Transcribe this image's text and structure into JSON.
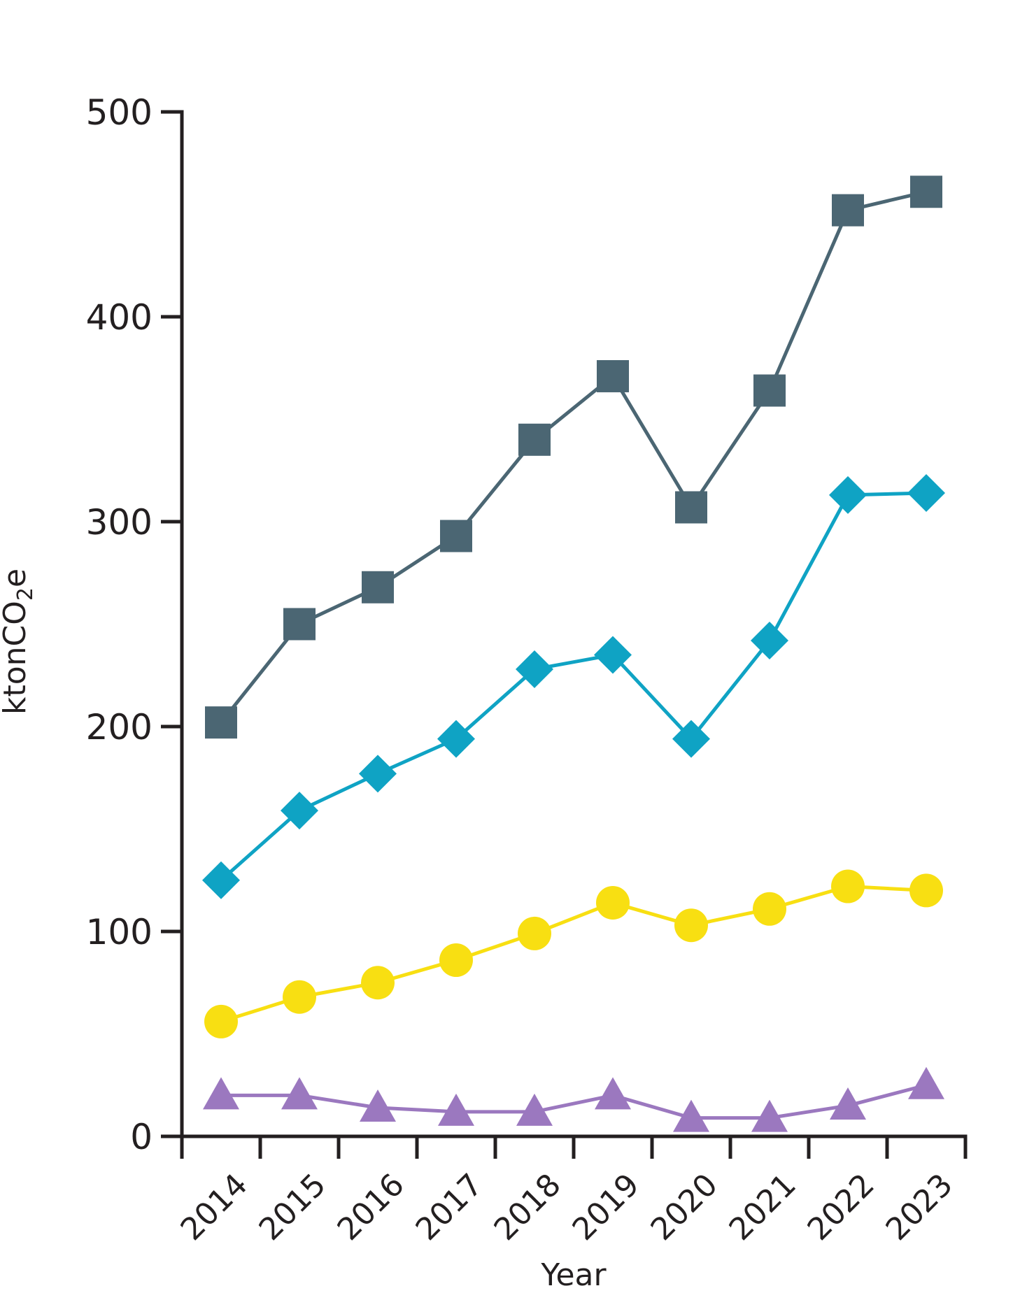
{
  "chart_data": {
    "type": "line",
    "title": "",
    "xlabel": "Year",
    "ylabel": "ktonCO",
    "ylabel_subscript": "2",
    "ylabel_suffix": "e",
    "categories": [
      "2014",
      "2015",
      "2016",
      "2017",
      "2018",
      "2019",
      "2020",
      "2021",
      "2022",
      "2023"
    ],
    "ylim": [
      0,
      500
    ],
    "yticks": [
      0,
      100,
      200,
      300,
      400,
      500
    ],
    "yticks_labels": [
      "0",
      "100",
      "200",
      "300",
      "400",
      "500"
    ],
    "grid": false,
    "legend": "none",
    "series": [
      {
        "marker": "square",
        "color": "#4b6673",
        "values": [
          202,
          250,
          268,
          293,
          340,
          371,
          307,
          364,
          452,
          461
        ]
      },
      {
        "marker": "diamond",
        "color": "#0fa3c4",
        "values": [
          125,
          159,
          177,
          194,
          228,
          235,
          194,
          242,
          313,
          314
        ]
      },
      {
        "marker": "circle",
        "color": "#f8df12",
        "values": [
          56,
          68,
          75,
          86,
          99,
          114,
          103,
          111,
          122,
          120
        ]
      },
      {
        "marker": "triangle",
        "color": "#9b78bf",
        "values": [
          20,
          20,
          14,
          12,
          12,
          20,
          9,
          9,
          15,
          25
        ]
      }
    ]
  }
}
